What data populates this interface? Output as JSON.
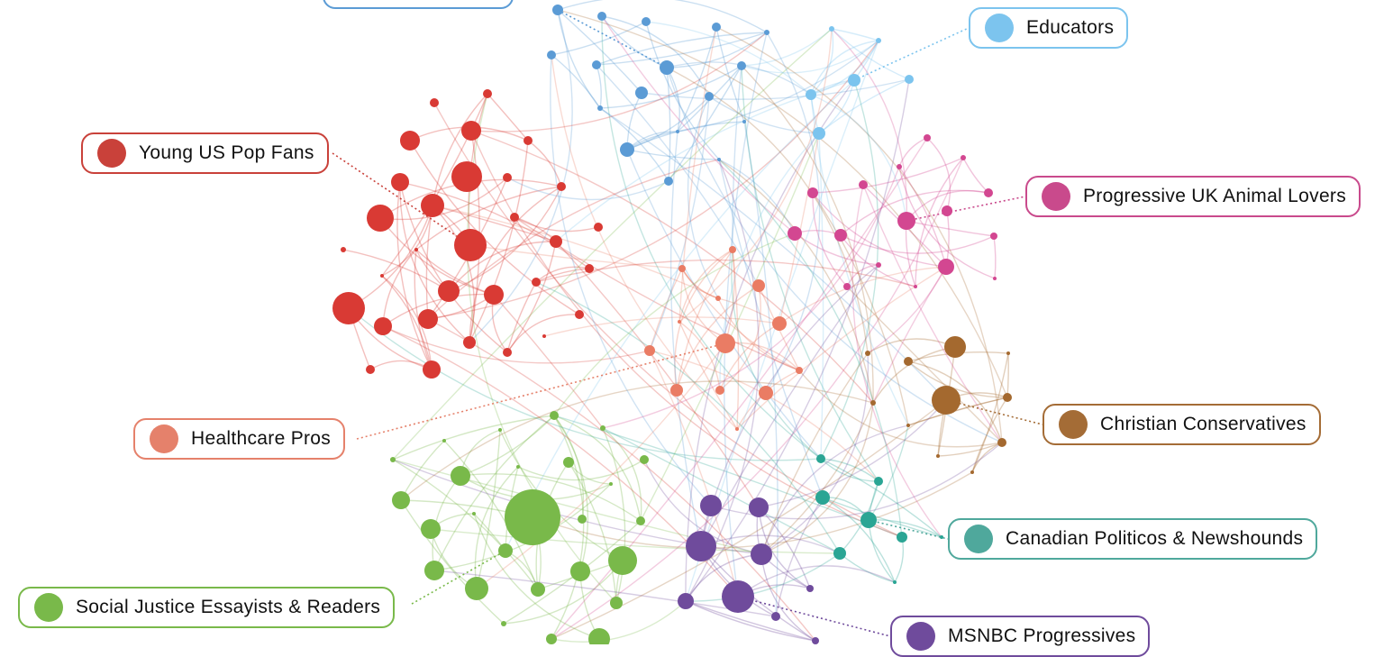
{
  "clusters": [
    {
      "key": "blue",
      "name": "",
      "color": "#5b9bd5"
    },
    {
      "key": "educators",
      "name": "Educators",
      "color": "#7cc4ee"
    },
    {
      "key": "young_us_pop",
      "name": "Young US Pop Fans",
      "color": "#d93a34"
    },
    {
      "key": "uk_animal",
      "name": "Progressive UK Animal Lovers",
      "color": "#d34791"
    },
    {
      "key": "healthcare",
      "name": "Healthcare Pros",
      "color": "#ea7c64"
    },
    {
      "key": "christian",
      "name": "Christian Conservatives",
      "color": "#a4692f"
    },
    {
      "key": "canadian",
      "name": "Canadian Politicos & Newshounds",
      "color": "#2aa594"
    },
    {
      "key": "social_justice",
      "name": "Social Justice Essayists & Readers",
      "color": "#79b94a"
    },
    {
      "key": "msnbc",
      "name": "MSNBC Progressives",
      "color": "#6f4b9c"
    }
  ]
}
